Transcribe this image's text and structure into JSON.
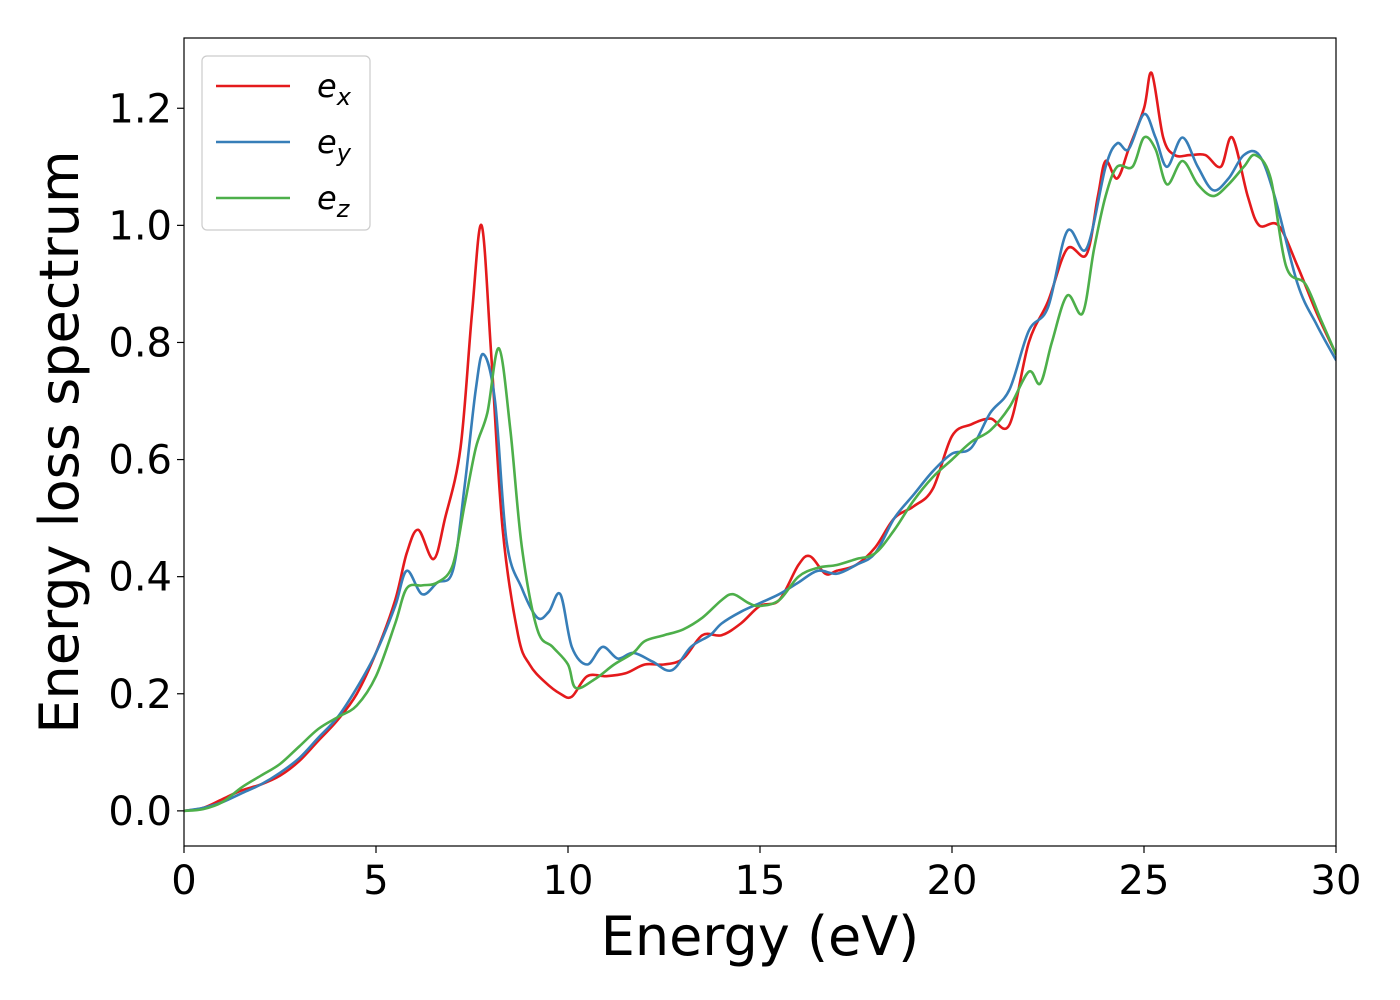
{
  "chart_data": {
    "type": "line",
    "title": "",
    "xlabel": "Energy (eV)",
    "ylabel": "Energy loss spectrum",
    "xlim": [
      0,
      30
    ],
    "ylim": [
      -0.06,
      1.32
    ],
    "xticks": [
      0,
      5,
      10,
      15,
      20,
      25,
      30
    ],
    "xtick_labels": [
      "0",
      "5",
      "10",
      "15",
      "20",
      "25",
      "30"
    ],
    "yticks": [
      0.0,
      0.2,
      0.4,
      0.6,
      0.8,
      1.0,
      1.2
    ],
    "ytick_labels": [
      "0.0",
      "0.2",
      "0.4",
      "0.6",
      "0.8",
      "1.0",
      "1.2"
    ],
    "grid": false,
    "legend_position": "top-left",
    "series": [
      {
        "name": "e",
        "subscript": "x",
        "color": "#e41a1c",
        "points": [
          [
            0,
            0
          ],
          [
            0.5,
            0.005
          ],
          [
            1,
            0.02
          ],
          [
            1.5,
            0.035
          ],
          [
            2,
            0.045
          ],
          [
            2.5,
            0.06
          ],
          [
            3,
            0.085
          ],
          [
            3.5,
            0.12
          ],
          [
            4,
            0.155
          ],
          [
            4.5,
            0.2
          ],
          [
            5,
            0.27
          ],
          [
            5.5,
            0.36
          ],
          [
            5.8,
            0.44
          ],
          [
            6.1,
            0.48
          ],
          [
            6.5,
            0.43
          ],
          [
            6.8,
            0.5
          ],
          [
            7.2,
            0.62
          ],
          [
            7.5,
            0.85
          ],
          [
            7.75,
            1.0
          ],
          [
            8,
            0.78
          ],
          [
            8.3,
            0.48
          ],
          [
            8.7,
            0.3
          ],
          [
            9,
            0.25
          ],
          [
            9.4,
            0.22
          ],
          [
            9.8,
            0.2
          ],
          [
            10.1,
            0.195
          ],
          [
            10.5,
            0.23
          ],
          [
            11,
            0.23
          ],
          [
            11.5,
            0.235
          ],
          [
            12,
            0.25
          ],
          [
            12.5,
            0.25
          ],
          [
            13,
            0.26
          ],
          [
            13.5,
            0.3
          ],
          [
            14,
            0.3
          ],
          [
            14.5,
            0.32
          ],
          [
            15,
            0.35
          ],
          [
            15.5,
            0.36
          ],
          [
            16,
            0.42
          ],
          [
            16.3,
            0.435
          ],
          [
            16.7,
            0.405
          ],
          [
            17,
            0.41
          ],
          [
            17.5,
            0.42
          ],
          [
            18,
            0.45
          ],
          [
            18.5,
            0.5
          ],
          [
            19,
            0.52
          ],
          [
            19.5,
            0.55
          ],
          [
            20,
            0.64
          ],
          [
            20.5,
            0.66
          ],
          [
            21,
            0.67
          ],
          [
            21.5,
            0.66
          ],
          [
            22,
            0.8
          ],
          [
            22.5,
            0.87
          ],
          [
            23,
            0.96
          ],
          [
            23.5,
            0.95
          ],
          [
            23.8,
            1.05
          ],
          [
            24,
            1.11
          ],
          [
            24.3,
            1.08
          ],
          [
            24.6,
            1.13
          ],
          [
            25,
            1.2
          ],
          [
            25.2,
            1.26
          ],
          [
            25.5,
            1.15
          ],
          [
            25.8,
            1.12
          ],
          [
            26.2,
            1.12
          ],
          [
            26.6,
            1.12
          ],
          [
            27,
            1.1
          ],
          [
            27.3,
            1.15
          ],
          [
            27.7,
            1.05
          ],
          [
            28,
            1.0
          ],
          [
            28.5,
            1.0
          ],
          [
            29,
            0.93
          ],
          [
            29.5,
            0.85
          ],
          [
            30,
            0.78
          ]
        ]
      },
      {
        "name": "e",
        "subscript": "y",
        "color": "#377eb8",
        "points": [
          [
            0,
            0
          ],
          [
            0.5,
            0.005
          ],
          [
            1,
            0.015
          ],
          [
            1.5,
            0.03
          ],
          [
            2,
            0.045
          ],
          [
            2.5,
            0.065
          ],
          [
            3,
            0.09
          ],
          [
            3.5,
            0.125
          ],
          [
            4,
            0.16
          ],
          [
            4.5,
            0.21
          ],
          [
            5,
            0.27
          ],
          [
            5.5,
            0.35
          ],
          [
            5.8,
            0.41
          ],
          [
            6.2,
            0.37
          ],
          [
            6.6,
            0.39
          ],
          [
            7,
            0.41
          ],
          [
            7.3,
            0.55
          ],
          [
            7.6,
            0.72
          ],
          [
            7.8,
            0.78
          ],
          [
            8.1,
            0.7
          ],
          [
            8.4,
            0.46
          ],
          [
            8.8,
            0.38
          ],
          [
            9.2,
            0.33
          ],
          [
            9.5,
            0.34
          ],
          [
            9.8,
            0.37
          ],
          [
            10.1,
            0.28
          ],
          [
            10.5,
            0.25
          ],
          [
            10.9,
            0.28
          ],
          [
            11.3,
            0.26
          ],
          [
            11.7,
            0.27
          ],
          [
            12.2,
            0.255
          ],
          [
            12.7,
            0.24
          ],
          [
            13.2,
            0.28
          ],
          [
            13.7,
            0.3
          ],
          [
            14,
            0.32
          ],
          [
            14.5,
            0.34
          ],
          [
            15,
            0.355
          ],
          [
            15.5,
            0.37
          ],
          [
            16,
            0.39
          ],
          [
            16.5,
            0.41
          ],
          [
            17,
            0.405
          ],
          [
            17.5,
            0.42
          ],
          [
            18,
            0.44
          ],
          [
            18.5,
            0.5
          ],
          [
            19,
            0.54
          ],
          [
            19.5,
            0.58
          ],
          [
            20,
            0.61
          ],
          [
            20.5,
            0.62
          ],
          [
            21,
            0.68
          ],
          [
            21.5,
            0.72
          ],
          [
            22,
            0.82
          ],
          [
            22.5,
            0.86
          ],
          [
            23,
            0.99
          ],
          [
            23.5,
            0.96
          ],
          [
            24,
            1.1
          ],
          [
            24.3,
            1.14
          ],
          [
            24.6,
            1.13
          ],
          [
            25,
            1.19
          ],
          [
            25.3,
            1.15
          ],
          [
            25.6,
            1.1
          ],
          [
            26,
            1.15
          ],
          [
            26.4,
            1.1
          ],
          [
            26.8,
            1.06
          ],
          [
            27.2,
            1.08
          ],
          [
            27.6,
            1.12
          ],
          [
            28,
            1.12
          ],
          [
            28.4,
            1.05
          ],
          [
            29,
            0.9
          ],
          [
            29.5,
            0.83
          ],
          [
            30,
            0.77
          ]
        ]
      },
      {
        "name": "e",
        "subscript": "z",
        "color": "#4daf4a",
        "points": [
          [
            0,
            0
          ],
          [
            0.5,
            0.003
          ],
          [
            1,
            0.015
          ],
          [
            1.5,
            0.04
          ],
          [
            2,
            0.06
          ],
          [
            2.5,
            0.08
          ],
          [
            3,
            0.11
          ],
          [
            3.5,
            0.14
          ],
          [
            4,
            0.16
          ],
          [
            4.5,
            0.18
          ],
          [
            5,
            0.23
          ],
          [
            5.5,
            0.32
          ],
          [
            5.8,
            0.38
          ],
          [
            6.2,
            0.385
          ],
          [
            6.6,
            0.39
          ],
          [
            7,
            0.42
          ],
          [
            7.3,
            0.52
          ],
          [
            7.6,
            0.62
          ],
          [
            7.9,
            0.68
          ],
          [
            8.2,
            0.79
          ],
          [
            8.5,
            0.65
          ],
          [
            8.8,
            0.45
          ],
          [
            9.2,
            0.31
          ],
          [
            9.6,
            0.28
          ],
          [
            10,
            0.25
          ],
          [
            10.2,
            0.21
          ],
          [
            10.7,
            0.225
          ],
          [
            11.2,
            0.25
          ],
          [
            11.7,
            0.27
          ],
          [
            12,
            0.29
          ],
          [
            12.5,
            0.3
          ],
          [
            13,
            0.31
          ],
          [
            13.5,
            0.33
          ],
          [
            14,
            0.36
          ],
          [
            14.3,
            0.37
          ],
          [
            14.7,
            0.355
          ],
          [
            15,
            0.35
          ],
          [
            15.5,
            0.36
          ],
          [
            16,
            0.4
          ],
          [
            16.5,
            0.415
          ],
          [
            17,
            0.42
          ],
          [
            17.5,
            0.43
          ],
          [
            18,
            0.44
          ],
          [
            18.5,
            0.48
          ],
          [
            19,
            0.53
          ],
          [
            19.5,
            0.57
          ],
          [
            20,
            0.6
          ],
          [
            20.5,
            0.63
          ],
          [
            21,
            0.65
          ],
          [
            21.5,
            0.69
          ],
          [
            22,
            0.75
          ],
          [
            22.3,
            0.73
          ],
          [
            22.6,
            0.8
          ],
          [
            23,
            0.88
          ],
          [
            23.4,
            0.85
          ],
          [
            23.7,
            0.96
          ],
          [
            24,
            1.05
          ],
          [
            24.3,
            1.1
          ],
          [
            24.7,
            1.1
          ],
          [
            25,
            1.15
          ],
          [
            25.3,
            1.13
          ],
          [
            25.6,
            1.07
          ],
          [
            26,
            1.11
          ],
          [
            26.4,
            1.07
          ],
          [
            26.8,
            1.05
          ],
          [
            27.2,
            1.07
          ],
          [
            27.6,
            1.1
          ],
          [
            27.9,
            1.12
          ],
          [
            28.3,
            1.08
          ],
          [
            28.7,
            0.93
          ],
          [
            29.2,
            0.9
          ],
          [
            29.6,
            0.84
          ],
          [
            30,
            0.78
          ]
        ]
      }
    ]
  }
}
